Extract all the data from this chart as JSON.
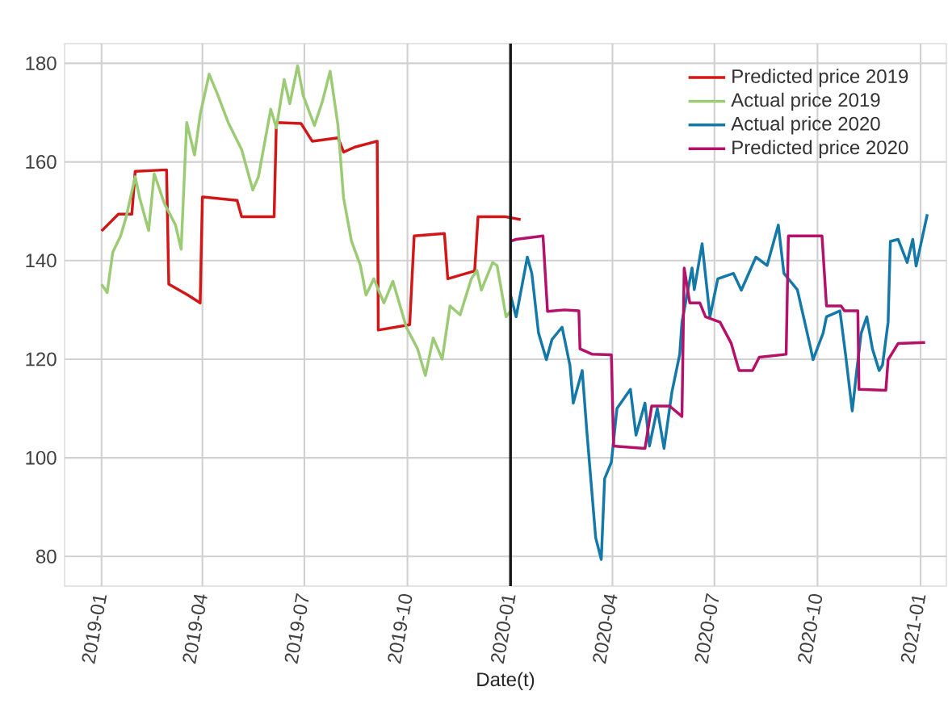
{
  "chart_data": {
    "type": "line",
    "xlabel": "Date(t)",
    "xlim": [
      "2018-11-29",
      "2021-01-24"
    ],
    "ylim": [
      74,
      184
    ],
    "xticks": [
      "2019-01",
      "2019-04",
      "2019-07",
      "2019-10",
      "2020-01",
      "2020-04",
      "2020-07",
      "2020-10",
      "2021-01"
    ],
    "yticks": [
      80,
      100,
      120,
      140,
      160,
      180
    ],
    "grid": true,
    "legend": "top right",
    "marker": "none",
    "line_style": "solid",
    "ref_lines": [
      {
        "axis": "x",
        "value": "2020-01-01",
        "color": "#1a1a1a"
      }
    ],
    "series": [
      {
        "name": "Predicted price 2019",
        "color": "#d11717",
        "x": [
          "2019-01-01",
          "2019-01-16",
          "2019-01-28",
          "2019-01-31",
          "2019-02-28",
          "2019-03-02",
          "2019-03-19",
          "2019-03-30",
          "2019-04-01",
          "2019-05-02",
          "2019-05-06",
          "2019-06-04",
          "2019-06-06",
          "2019-06-28",
          "2019-07-08",
          "2019-07-31",
          "2019-08-05",
          "2019-08-15",
          "2019-09-04",
          "2019-09-05",
          "2019-10-03",
          "2019-10-07",
          "2019-11-03",
          "2019-11-06",
          "2019-11-30",
          "2019-12-03",
          "2019-12-27",
          "2020-01-10"
        ],
        "values": [
          146,
          149.4,
          149.4,
          158.1,
          158.4,
          135.2,
          133,
          131.4,
          152.9,
          152.2,
          148.9,
          148.9,
          168,
          167.8,
          164.2,
          164.9,
          162,
          163,
          164.2,
          125.9,
          127,
          145,
          145.5,
          136.3,
          137.9,
          148.9,
          148.9,
          148.3
        ]
      },
      {
        "name": "Actual price 2019",
        "color": "#9ccb75",
        "x": [
          "2019-01-01",
          "2019-01-06",
          "2019-01-11",
          "2019-01-18",
          "2019-01-23",
          "2019-01-31",
          "2019-02-04",
          "2019-02-12",
          "2019-02-17",
          "2019-02-26",
          "2019-03-08",
          "2019-03-13",
          "2019-03-18",
          "2019-03-25",
          "2019-03-30",
          "2019-04-07",
          "2019-04-14",
          "2019-04-24",
          "2019-05-06",
          "2019-05-16",
          "2019-05-21",
          "2019-06-01",
          "2019-06-06",
          "2019-06-13",
          "2019-06-18",
          "2019-06-25",
          "2019-06-30",
          "2019-07-10",
          "2019-07-17",
          "2019-07-24",
          "2019-07-31",
          "2019-08-05",
          "2019-08-12",
          "2019-08-20",
          "2019-08-25",
          "2019-09-01",
          "2019-09-10",
          "2019-09-18",
          "2019-09-30",
          "2019-10-10",
          "2019-10-17",
          "2019-10-24",
          "2019-11-01",
          "2019-11-08",
          "2019-11-17",
          "2019-11-27",
          "2019-12-02",
          "2019-12-06",
          "2019-12-16",
          "2019-12-20",
          "2019-12-28",
          "2020-01-02"
        ],
        "values": [
          135.2,
          133.5,
          141.7,
          145,
          148.9,
          157,
          152.7,
          146.1,
          157.6,
          151.6,
          147.2,
          142.3,
          168,
          161.4,
          169.6,
          177.8,
          174,
          168,
          162.5,
          154.3,
          157,
          170.7,
          166.9,
          176.7,
          171.8,
          179.5,
          173.4,
          167.4,
          172.2,
          178.4,
          167.4,
          152.7,
          144,
          139,
          133,
          136.3,
          131.4,
          135.8,
          126.5,
          122.1,
          116.7,
          124.3,
          120,
          130.8,
          129,
          136.3,
          138,
          134,
          139.6,
          139,
          128.6,
          130
        ]
      },
      {
        "name": "Actual price 2020",
        "color": "#1479a8",
        "x": [
          "2020-01-01",
          "2020-01-06",
          "2020-01-16",
          "2020-01-20",
          "2020-01-26",
          "2020-02-02",
          "2020-02-07",
          "2020-02-16",
          "2020-02-23",
          "2020-02-26",
          "2020-03-05",
          "2020-03-09",
          "2020-03-17",
          "2020-03-22",
          "2020-03-25",
          "2020-03-31",
          "2020-04-05",
          "2020-04-17",
          "2020-04-22",
          "2020-04-30",
          "2020-05-04",
          "2020-05-11",
          "2020-05-17",
          "2020-05-24",
          "2020-05-31",
          "2020-06-02",
          "2020-06-11",
          "2020-06-13",
          "2020-06-20",
          "2020-06-27",
          "2020-07-04",
          "2020-07-18",
          "2020-07-25",
          "2020-08-07",
          "2020-08-17",
          "2020-08-27",
          "2020-09-01",
          "2020-09-13",
          "2020-09-25",
          "2020-09-27",
          "2020-10-06",
          "2020-10-09",
          "2020-10-21",
          "2020-10-26",
          "2020-11-01",
          "2020-11-05",
          "2020-11-09",
          "2020-11-14",
          "2020-11-19",
          "2020-11-25",
          "2020-11-28",
          "2020-12-03",
          "2020-12-05",
          "2020-12-12",
          "2020-12-20",
          "2020-12-25",
          "2020-12-28",
          "2021-01-07"
        ],
        "values": [
          133,
          128.6,
          140.7,
          137.4,
          125.3,
          119.9,
          124,
          126.5,
          118.8,
          111.1,
          117.7,
          105.7,
          83.8,
          79.4,
          95.8,
          99.1,
          110,
          113.9,
          104.6,
          111.1,
          102.4,
          110,
          101.9,
          113.3,
          121,
          127.5,
          138.5,
          134.1,
          143.4,
          128.6,
          136.3,
          137.4,
          134,
          140.7,
          139,
          147.2,
          137.4,
          134.1,
          122.1,
          119.9,
          125.3,
          128.6,
          129.8,
          121,
          109.5,
          117.7,
          125.3,
          128.6,
          122.1,
          117.7,
          118.8,
          127.5,
          143.9,
          144.3,
          139.6,
          144.3,
          138.9,
          149.4
        ]
      },
      {
        "name": "Predicted price 2020",
        "color": "#b5106a",
        "x": [
          "2020-01-01",
          "2020-01-06",
          "2020-01-16",
          "2020-01-30",
          "2020-02-03",
          "2020-02-18",
          "2020-03-02",
          "2020-03-03",
          "2020-03-14",
          "2020-03-31",
          "2020-04-02",
          "2020-04-30",
          "2020-05-06",
          "2020-05-22",
          "2020-06-02",
          "2020-06-04",
          "2020-06-09",
          "2020-06-18",
          "2020-06-23",
          "2020-07-06",
          "2020-07-16",
          "2020-07-23",
          "2020-08-04",
          "2020-08-10",
          "2020-09-03",
          "2020-09-05",
          "2020-10-05",
          "2020-10-09",
          "2020-10-22",
          "2020-10-25",
          "2020-11-06",
          "2020-11-07",
          "2020-12-01",
          "2020-12-03",
          "2020-12-12",
          "2021-01-05"
        ],
        "values": [
          143.9,
          144.3,
          144.6,
          145,
          129.7,
          130,
          129.8,
          122.1,
          121,
          120.9,
          102.4,
          101.9,
          110.5,
          110.5,
          108.4,
          138.5,
          131.4,
          131.4,
          128.6,
          127.5,
          123.2,
          117.7,
          117.7,
          120.4,
          121,
          145,
          145,
          130.8,
          130.8,
          129.8,
          129.8,
          113.9,
          113.7,
          119.9,
          123.2,
          123.4
        ]
      }
    ]
  }
}
